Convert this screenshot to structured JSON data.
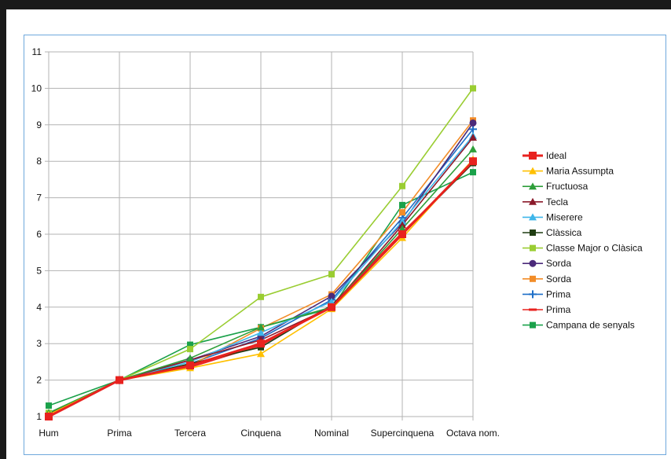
{
  "chart_data": {
    "type": "line",
    "title": "",
    "xlabel": "",
    "ylabel": "",
    "categories": [
      "Hum",
      "Prima",
      "Tercera",
      "Cinquena",
      "Nominal",
      "Supercinquena",
      "Octava nom."
    ],
    "ylim": [
      1,
      11
    ],
    "yticks": [
      1,
      2,
      3,
      4,
      5,
      6,
      7,
      8,
      9,
      10,
      11
    ],
    "grid": true,
    "legend_position": "right",
    "series": [
      {
        "name": "Ideal",
        "color": "#e8221f",
        "marker": "square",
        "values": [
          1,
          2,
          2.4,
          3.0,
          4.0,
          6.0,
          8.0
        ]
      },
      {
        "name": "Maria Assumpta",
        "color": "#ffc000",
        "marker": "triangle",
        "values": [
          1.05,
          2,
          2.33,
          2.72,
          3.95,
          5.9,
          8.05
        ]
      },
      {
        "name": "Fructuosa",
        "color": "#2e9e3a",
        "marker": "triangle",
        "values": [
          1.1,
          2,
          2.6,
          3.45,
          4.0,
          6.15,
          8.33
        ]
      },
      {
        "name": "Tecla",
        "color": "#8b1a2b",
        "marker": "triangle",
        "values": [
          1.08,
          2,
          2.55,
          3.1,
          4.0,
          6.25,
          8.65
        ]
      },
      {
        "name": "Miserere",
        "color": "#3fb6ea",
        "marker": "triangle",
        "values": [
          1.05,
          2,
          2.5,
          3.3,
          4.15,
          6.35,
          8.7
        ]
      },
      {
        "name": "Clàssica",
        "color": "#1f3d12",
        "marker": "square",
        "values": [
          1.02,
          2,
          2.45,
          2.9,
          4.05,
          6.0,
          7.95
        ]
      },
      {
        "name": "Classe Major o Clàsica",
        "color": "#9acd32",
        "marker": "square",
        "values": [
          1.1,
          2,
          2.85,
          4.28,
          4.9,
          7.32,
          10.0
        ]
      },
      {
        "name": "Sorda",
        "color": "#4b2a7a",
        "marker": "circle",
        "values": [
          1.05,
          2,
          2.55,
          3.2,
          4.3,
          6.3,
          9.05
        ]
      },
      {
        "name": "Sorda",
        "color": "#f28c28",
        "marker": "square",
        "values": [
          1.0,
          2,
          2.4,
          3.42,
          4.35,
          6.6,
          9.12
        ]
      },
      {
        "name": "Prima",
        "color": "#1e6fc8",
        "marker": "plus",
        "values": [
          1.05,
          2,
          2.45,
          3.15,
          4.2,
          6.45,
          8.88
        ]
      },
      {
        "name": "Prima",
        "color": "#e8221f",
        "marker": "dash",
        "values": [
          1.0,
          2,
          2.35,
          2.95,
          4.05,
          6.05,
          7.95
        ]
      },
      {
        "name": "Campana de senyals",
        "color": "#1aa14a",
        "marker": "square",
        "values": [
          1.3,
          2,
          2.97,
          3.45,
          3.97,
          6.8,
          7.7
        ]
      }
    ]
  }
}
